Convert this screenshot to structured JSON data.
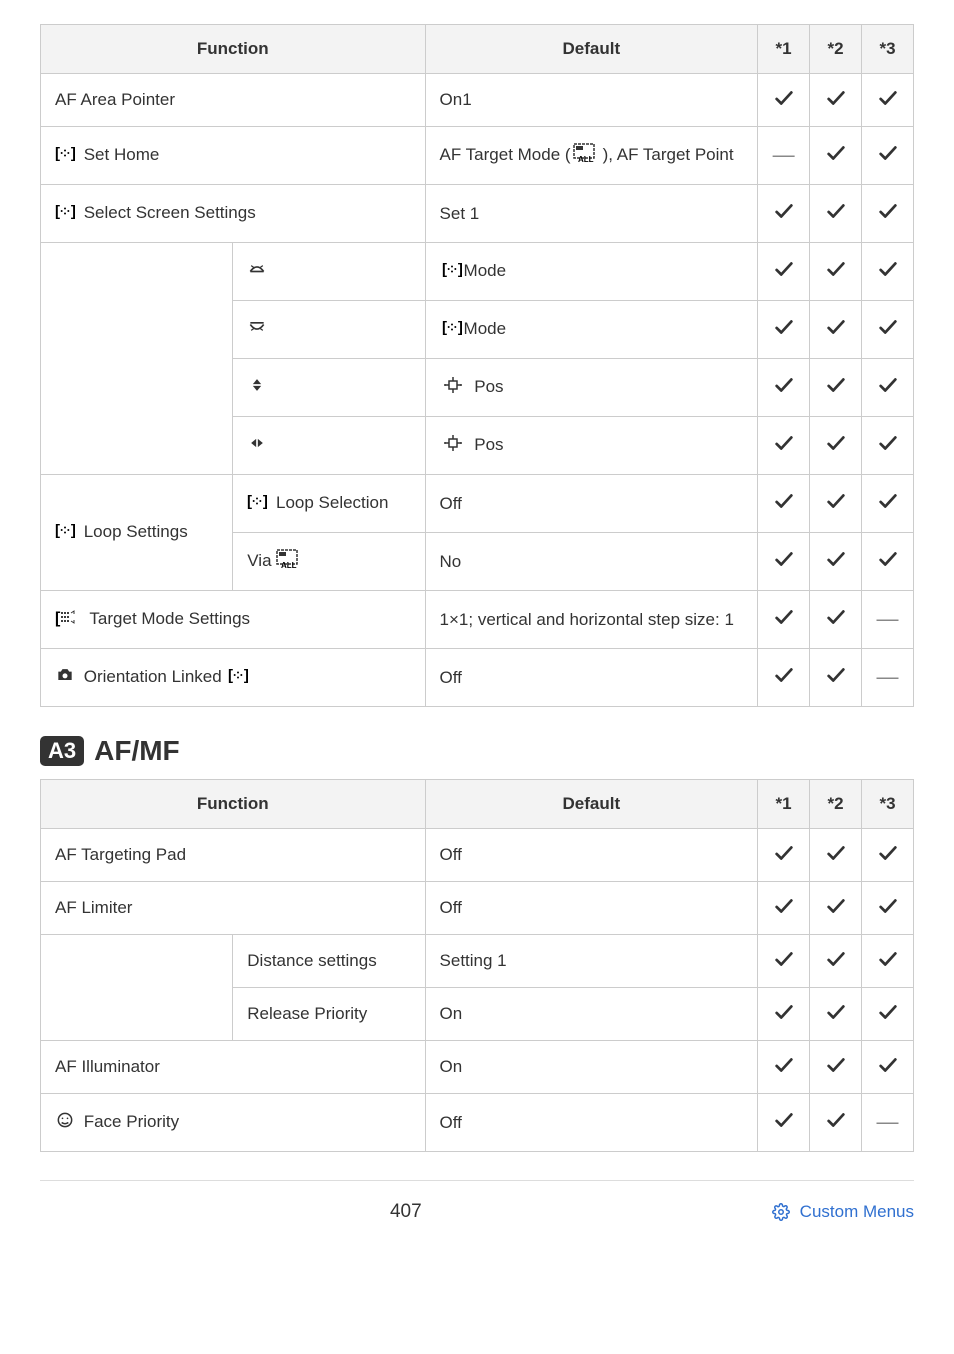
{
  "headers": {
    "function": "Function",
    "default": "Default",
    "c1": "*1",
    "c2": "*2",
    "c3": "*3"
  },
  "table1": {
    "rows": [
      {
        "func": "AF Area Pointer",
        "def": "On1",
        "c1": "check",
        "c2": "check",
        "c3": "check",
        "span": 2
      },
      {
        "func_icon": "target",
        "func": " Set Home",
        "def_pre_icon": null,
        "def": "AF Target Mode (",
        "def_icon": "allgrid",
        "def_post": "), AF Target Point",
        "c1": "dash",
        "c2": "check",
        "c3": "check",
        "span": 2
      },
      {
        "func_icon": "target",
        "func": " Select Screen Settings",
        "def": "Set 1",
        "c1": "check",
        "c2": "check",
        "c3": "check",
        "span": 2
      },
      {
        "sub_icon": "dial-top",
        "def_icon": "target",
        "def": "Mode",
        "c1": "check",
        "c2": "check",
        "c3": "check",
        "group_start": 4
      },
      {
        "sub_icon": "dial-bottom",
        "def_icon": "target",
        "def": "Mode",
        "c1": "check",
        "c2": "check",
        "c3": "check"
      },
      {
        "sub_icon": "updown",
        "def_icon": "cross-pos",
        "def": " Pos",
        "c1": "check",
        "c2": "check",
        "c3": "check"
      },
      {
        "sub_icon": "leftright",
        "def_icon": "cross-pos",
        "def": " Pos",
        "c1": "check",
        "c2": "check",
        "c3": "check"
      },
      {
        "group_label_icon": "target",
        "group_label": " Loop Settings",
        "group_rows": 2,
        "sub_icon": "target",
        "sub": " Loop Selection",
        "def": "Off",
        "c1": "check",
        "c2": "check",
        "c3": "check"
      },
      {
        "sub_pre": "Via ",
        "sub_icon": "allgrid",
        "def": "No",
        "c1": "check",
        "c2": "check",
        "c3": "check"
      },
      {
        "func_icon": "grid-custom",
        "func": " Target Mode Settings",
        "def": "1×1; vertical and horizontal step size: 1",
        "c1": "check",
        "c2": "check",
        "c3": "dash",
        "span": 2
      },
      {
        "func_icon": "camera",
        "func": " Orientation Linked ",
        "func_icon2": "target",
        "def": "Off",
        "c1": "check",
        "c2": "check",
        "c3": "dash",
        "span": 2
      }
    ]
  },
  "section_badge": "A3",
  "section_title": "AF/MF",
  "table2": {
    "rows": [
      {
        "func": "AF Targeting Pad",
        "def": "Off",
        "c1": "check",
        "c2": "check",
        "c3": "check",
        "span": 2
      },
      {
        "func": "AF Limiter",
        "def": "Off",
        "c1": "check",
        "c2": "check",
        "c3": "check",
        "span": 2
      },
      {
        "sub": "Distance settings",
        "def": "Setting 1",
        "c1": "check",
        "c2": "check",
        "c3": "check",
        "group_start": 2
      },
      {
        "sub": "Release Priority",
        "def": "On",
        "c1": "check",
        "c2": "check",
        "c3": "check"
      },
      {
        "func": "AF Illuminator",
        "def": "On",
        "c1": "check",
        "c2": "check",
        "c3": "check",
        "span": 2
      },
      {
        "func_icon": "face",
        "func": " Face Priority",
        "def": "Off",
        "c1": "check",
        "c2": "check",
        "c3": "dash",
        "span": 2
      }
    ]
  },
  "page_number": "407",
  "footer_link": "Custom Menus"
}
